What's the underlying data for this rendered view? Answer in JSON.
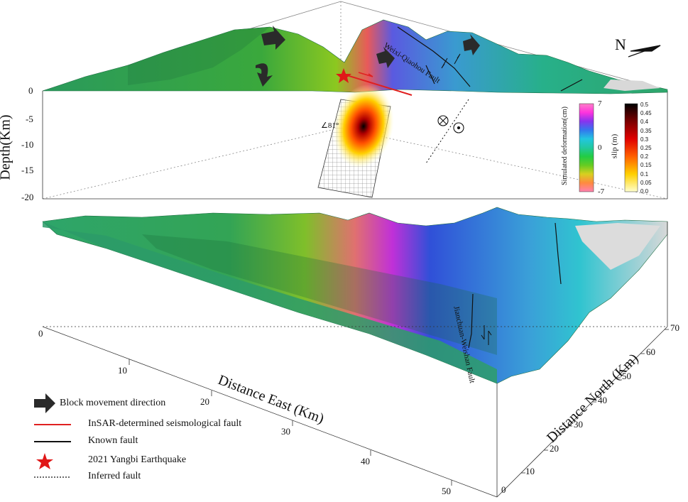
{
  "compass": {
    "label": "N"
  },
  "depth_axis": {
    "title": "Depth(Km)",
    "ticks": [
      "0",
      "-5",
      "-10",
      "-15",
      "-20"
    ]
  },
  "east_axis": {
    "title": "Distance East (Km)",
    "ticks": [
      "0",
      "10",
      "20",
      "30",
      "40",
      "50"
    ]
  },
  "north_axis": {
    "title": "Distance North (Km)",
    "ticks": [
      "0",
      "10",
      "20",
      "30",
      "40",
      "50",
      "60",
      "70"
    ]
  },
  "annotations": {
    "dip_angle": "∠81°",
    "fault_upper": "Weixi-Qiaohou Fault",
    "fault_lower": "Jianchuan-Weishan Fault"
  },
  "deformation_bar": {
    "title": "Simulated deformation(cm)",
    "max": "7",
    "mid": "0",
    "min": "-7",
    "colors": [
      "#ff7fc8",
      "#ff33dd",
      "#8833ee",
      "#3377ee",
      "#22c6e0",
      "#22c8a0",
      "#22cc44",
      "#66cc22",
      "#d8d020",
      "#ff8a40",
      "#ff80b0"
    ]
  },
  "slip_bar": {
    "title": "slip (m)",
    "ticks": [
      "0.5",
      "0.45",
      "0.4",
      "0.35",
      "0.3",
      "0.25",
      "0.2",
      "0.15",
      "0.1",
      "0.05",
      "0.0"
    ],
    "colors": [
      "#000000",
      "#7a0000",
      "#e00000",
      "#ff6000",
      "#ffd000",
      "#ffffcc"
    ]
  },
  "legend": [
    {
      "symbol": "block-arrow",
      "label": "Block movement direction"
    },
    {
      "symbol": "red-line",
      "label": "InSAR-determined  seismological fault"
    },
    {
      "symbol": "black-line",
      "label": "Known fault"
    },
    {
      "symbol": "red-star",
      "label": "2021 Yangbi Earthquake"
    },
    {
      "symbol": "dotted-line",
      "label": "Inferred fault"
    }
  ],
  "colors": {
    "terrain_green": "#2fa866",
    "terrain_dark": "#1f7a4a",
    "uplift_red": "#e05050",
    "subsidence_blue": "#3a6fd8",
    "epicenter": "#e01818",
    "insar_fault": "#e02020"
  }
}
